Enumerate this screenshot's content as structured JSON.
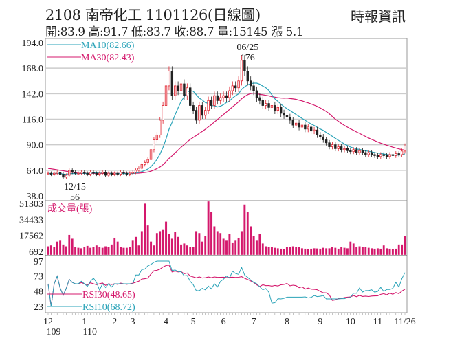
{
  "header": {
    "title": "2108  南帝化工 1101126(日線圖)",
    "source": "時報資訊",
    "quote": "開:83.9 高:91.7 低:83.7 收:88.7 量:15145 漲 5.1"
  },
  "chart_data": [
    {
      "type": "candlestick",
      "panel": "price",
      "ylim": [
        38.0,
        194.0
      ],
      "yticks": [
        "194.0",
        "168.0",
        "142.0",
        "116.0",
        "90.0",
        "64.0",
        "38.0"
      ],
      "ytick_values": [
        194,
        168,
        142,
        116,
        90,
        64,
        38
      ],
      "legend": [
        {
          "label": "MA10(82.66)",
          "color": "#2aa3b8"
        },
        {
          "label": "MA30(82.43)",
          "color": "#d4186c"
        }
      ],
      "annotations": [
        {
          "date": "06/25",
          "value": "176",
          "index": 66
        },
        {
          "date": "12/15",
          "value": "56",
          "index": 5
        }
      ],
      "close": [
        61,
        60,
        61,
        62,
        60,
        57,
        59,
        64,
        62,
        61,
        61,
        62,
        61,
        60,
        62,
        61,
        60,
        61,
        62,
        59,
        61,
        60,
        61,
        60,
        62,
        61,
        60,
        61,
        62,
        64,
        66,
        70,
        72,
        75,
        85,
        95,
        100,
        115,
        130,
        150,
        165,
        140,
        150,
        145,
        152,
        140,
        148,
        130,
        125,
        115,
        130,
        120,
        125,
        135,
        130,
        140,
        135,
        138,
        140,
        138,
        145,
        150,
        148,
        155,
        176,
        165,
        155,
        150,
        145,
        138,
        135,
        130,
        132,
        128,
        130,
        125,
        128,
        122,
        120,
        118,
        115,
        110,
        112,
        108,
        110,
        106,
        108,
        104,
        105,
        100,
        98,
        95,
        92,
        88,
        90,
        86,
        88,
        85,
        86,
        84,
        83,
        85,
        82,
        84,
        82,
        80,
        82,
        80,
        79,
        78,
        80,
        79,
        78,
        80,
        79,
        81,
        80,
        83.6,
        88.7
      ]
    },
    {
      "type": "bar",
      "panel": "volume",
      "title": "成交量(張)",
      "color": "#d4186c",
      "ylim": [
        692,
        51303
      ],
      "yticks": [
        "51303",
        "34433",
        "17562",
        "692"
      ],
      "ytick_values": [
        51303,
        34433,
        17562,
        692
      ],
      "values": [
        4000,
        5000,
        3500,
        9000,
        10000,
        6000,
        4000,
        16000,
        12000,
        3000,
        2500,
        2000,
        3000,
        4500,
        2500,
        3500,
        5000,
        3000,
        2500,
        4000,
        3000,
        6000,
        13000,
        9000,
        3000,
        2500,
        2500,
        3000,
        10000,
        14000,
        5000,
        20000,
        49000,
        26000,
        9000,
        5000,
        18000,
        20000,
        22000,
        30000,
        17000,
        12000,
        19000,
        14000,
        6000,
        7000,
        5000,
        3000,
        3000,
        20000,
        18000,
        9000,
        15000,
        51303,
        40000,
        25000,
        20000,
        18000,
        12000,
        10000,
        17000,
        8000,
        10000,
        13000,
        20000,
        48000,
        40000,
        25000,
        15000,
        10000,
        17000,
        7000,
        4000,
        3000,
        3000,
        2500,
        2000,
        1500,
        1200,
        3000,
        3500,
        4000,
        3500,
        3000,
        2000,
        1500,
        1200,
        1500,
        2000,
        1800,
        1500,
        2500,
        2000,
        2000,
        3000,
        2500,
        1500,
        3000,
        2500,
        2000,
        9000,
        7000,
        3000,
        4000,
        3500,
        3000,
        2500,
        2000,
        1500,
        2000,
        1500,
        5000,
        2000,
        1500,
        1200,
        1500,
        6000,
        6000,
        15145
      ]
    },
    {
      "type": "line",
      "panel": "rsi",
      "ylim": [
        23,
        97
      ],
      "yticks": [
        "97",
        "73",
        "48",
        "23"
      ],
      "ytick_values": [
        97,
        73,
        48,
        23
      ],
      "legend": [
        {
          "label": "RSI30(48.65)",
          "color": "#d4186c"
        },
        {
          "label": "RSI10(68.72)",
          "color": "#2aa3b8"
        }
      ]
    },
    {
      "type": "axis",
      "xticks": [
        "12",
        "1",
        "2",
        "3",
        "4",
        "5",
        "6",
        "7",
        "8",
        "9",
        "10",
        "11",
        "11/26"
      ],
      "xtick_index": [
        0,
        12,
        22,
        28,
        39,
        48,
        58,
        68,
        79,
        90,
        100,
        109,
        118
      ],
      "year_labels": [
        {
          "label": "109",
          "index": 0
        },
        {
          "label": "110",
          "index": 12
        }
      ]
    }
  ]
}
